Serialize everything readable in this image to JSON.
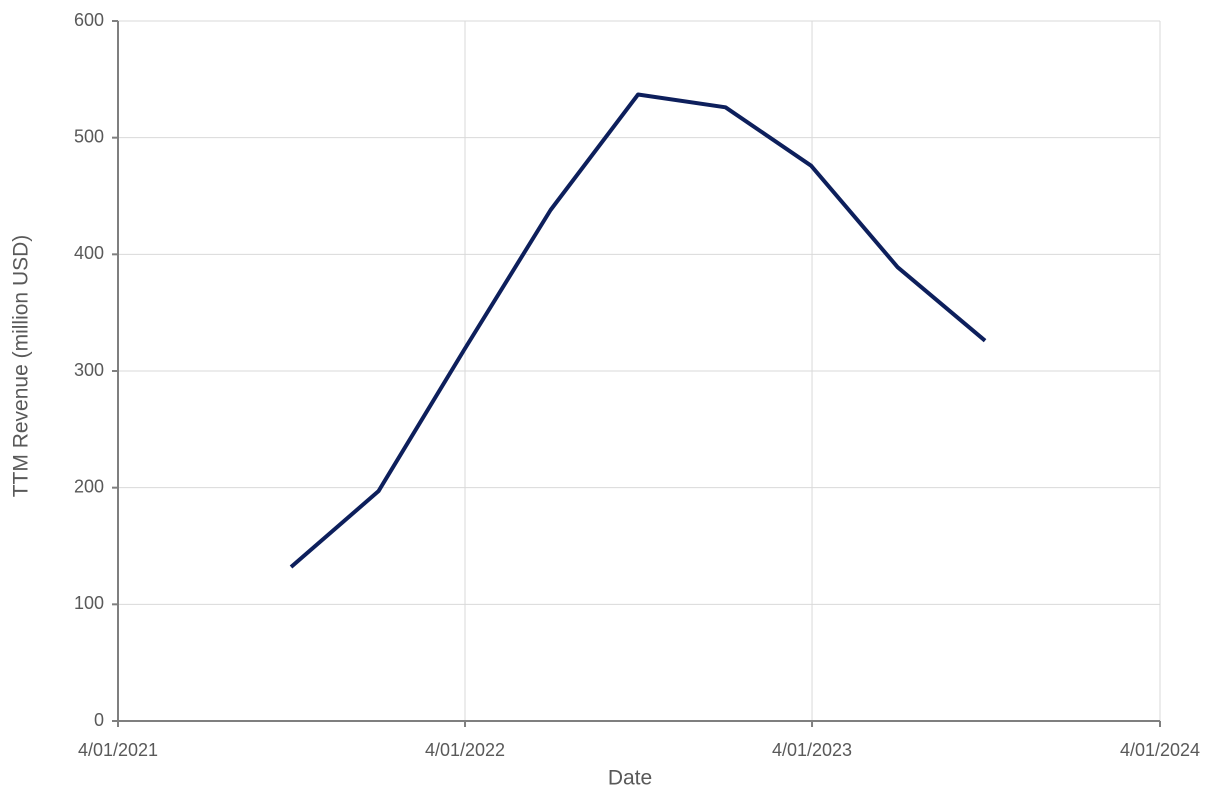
{
  "chart_data": {
    "type": "line",
    "x_label": "Date",
    "y_label": "TTM Revenue (million USD)",
    "x": [
      "2021-09-30",
      "2021-12-31",
      "2022-03-31",
      "2022-06-30",
      "2022-09-30",
      "2022-12-31",
      "2023-03-31",
      "2023-06-30",
      "2023-09-30"
    ],
    "series": [
      {
        "color": "#0d1f5c",
        "values": [
          132,
          197,
          318,
          438,
          537,
          526,
          476,
          389,
          326
        ]
      }
    ],
    "xlim": [
      "2021-04-01",
      "2024-04-01"
    ],
    "xticks": [
      {
        "value": "2021-04-01",
        "label": "4/01/2021"
      },
      {
        "value": "2022-04-01",
        "label": "4/01/2022"
      },
      {
        "value": "2023-04-01",
        "label": "4/01/2023"
      },
      {
        "value": "2024-04-01",
        "label": "4/01/2024"
      }
    ],
    "ylim": [
      0,
      600
    ],
    "yticks": [
      0,
      100,
      200,
      300,
      400,
      500,
      600
    ],
    "grid": true
  }
}
